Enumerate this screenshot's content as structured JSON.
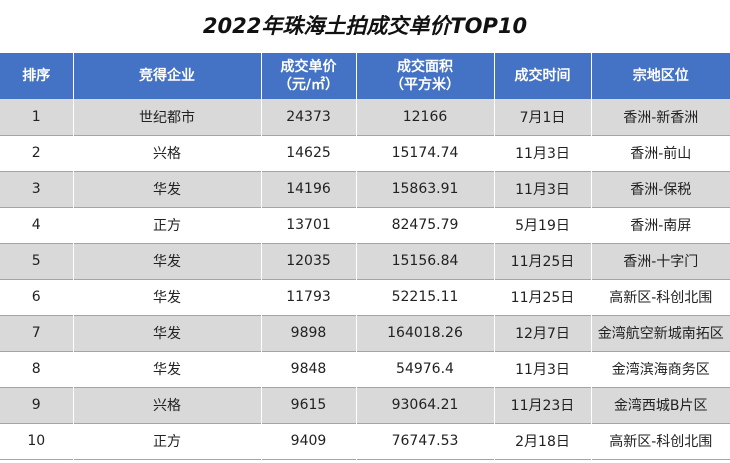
{
  "title": "2022年珠海土拍成交单价TOP10",
  "headers": [
    {
      "line1": "排序",
      "line2": ""
    },
    {
      "line1": "竞得企业",
      "line2": ""
    },
    {
      "line1": "成交单价",
      "line2": "（元/㎡）"
    },
    {
      "line1": "成交面积",
      "line2": "（平方米）"
    },
    {
      "line1": "成交时间",
      "line2": ""
    },
    {
      "line1": "宗地区位",
      "line2": ""
    }
  ],
  "rows": [
    [
      "1",
      "世纪都市",
      "24373",
      "12166",
      "7月1日",
      "香洲-新香洲"
    ],
    [
      "2",
      "兴格",
      "14625",
      "15174.74",
      "11月3日",
      "香洲-前山"
    ],
    [
      "3",
      "华发",
      "14196",
      "15863.91",
      "11月3日",
      "香洲-保税"
    ],
    [
      "4",
      "正方",
      "13701",
      "82475.79",
      "5月19日",
      "香洲-南屏"
    ],
    [
      "5",
      "华发",
      "12035",
      "15156.84",
      "11月25日",
      "香洲-十字门"
    ],
    [
      "6",
      "华发",
      "11793",
      "52215.11",
      "11月25日",
      "高新区-科创北围"
    ],
    [
      "7",
      "华发",
      "9898",
      "164018.26",
      "12月7日",
      "金湾航空新城南拓区"
    ],
    [
      "8",
      "华发",
      "9848",
      "54976.4",
      "11月3日",
      "金湾滨海商务区"
    ],
    [
      "9",
      "兴格",
      "9615",
      "93064.21",
      "11月23日",
      "金湾西城B片区"
    ],
    [
      "10",
      "正方",
      "9409",
      "76747.53",
      "2月18日",
      "高新区-科创北围"
    ]
  ],
  "colors": {
    "header_bg": "#4472c4",
    "stripe": "#d9d9d9"
  }
}
